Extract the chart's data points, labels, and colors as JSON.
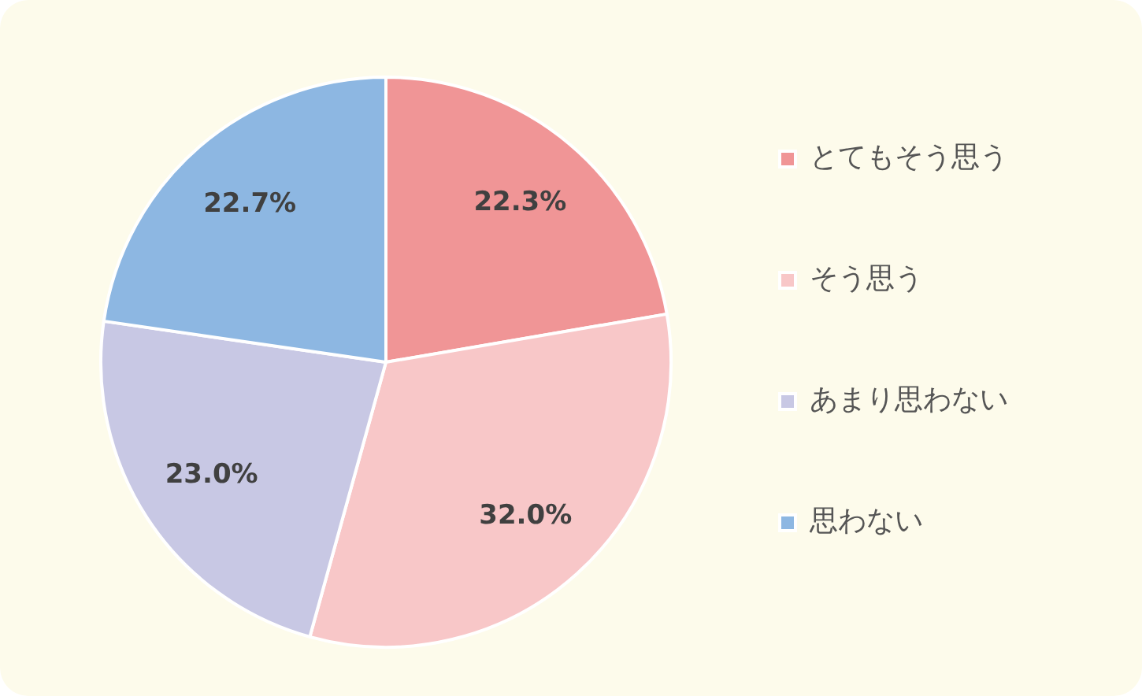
{
  "chart_data": {
    "type": "pie",
    "categories": [
      "とてもそう思う",
      "そう思う",
      "あまり思わない",
      "思わない"
    ],
    "values": [
      22.3,
      32.0,
      23.0,
      22.7
    ],
    "colors": [
      "#f09596",
      "#f8c7c8",
      "#c8c8e4",
      "#8db7e2"
    ],
    "value_labels": [
      "22.3%",
      "32.0%",
      "23.0%",
      "22.7%"
    ],
    "legend": "right"
  }
}
